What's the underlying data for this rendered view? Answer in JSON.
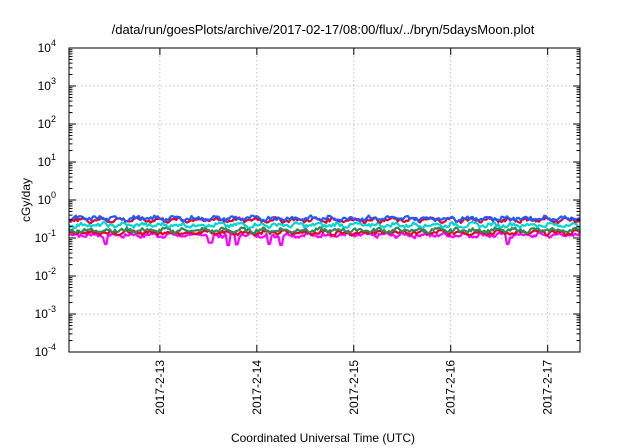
{
  "chart_data": {
    "type": "line",
    "title": "/data/run/goesPlots/archive/2017-02-17/08:00/flux/../bryn/5daysMoon.plot",
    "xlabel": "Coordinated Universal Time (UTC)",
    "ylabel": "cGy/day",
    "yscale": "log",
    "ylim": [
      0.0001,
      10000
    ],
    "xlim": [
      "2017-02-12T01:30",
      "2017-02-17T08:00"
    ],
    "x_ticks": [
      "2017-2-13",
      "2017-2-14",
      "2017-2-15",
      "2017-2-16",
      "2017-2-17"
    ],
    "y_ticks": [
      {
        "base": "10",
        "exp": "-4",
        "value": 0.0001
      },
      {
        "base": "10",
        "exp": "-3",
        "value": 0.001
      },
      {
        "base": "10",
        "exp": "-2",
        "value": 0.01
      },
      {
        "base": "10",
        "exp": "-1",
        "value": 0.1
      },
      {
        "base": "10",
        "exp": "0",
        "value": 1
      },
      {
        "base": "10",
        "exp": "1",
        "value": 10
      },
      {
        "base": "10",
        "exp": "2",
        "value": 100
      },
      {
        "base": "10",
        "exp": "3",
        "value": 1000
      },
      {
        "base": "10",
        "exp": "4",
        "value": 10000
      }
    ],
    "grid": true,
    "legend": "none",
    "series": [
      {
        "color": "#ff00ff",
        "level": 0.12,
        "dips": [
          {
            "x": "2017-02-12T10:30",
            "y": 0.07
          },
          {
            "x": "2017-02-13T12:30",
            "y": 0.075
          },
          {
            "x": "2017-02-13T17:00",
            "y": 0.065
          },
          {
            "x": "2017-02-13T19:00",
            "y": 0.068
          },
          {
            "x": "2017-02-14T03:00",
            "y": 0.07
          },
          {
            "x": "2017-02-14T06:00",
            "y": 0.066
          },
          {
            "x": "2017-02-16T14:00",
            "y": 0.07
          }
        ]
      },
      {
        "color": "#e8002a",
        "level": 0.14
      },
      {
        "color": "#2e8b57",
        "level": 0.16
      },
      {
        "color": "#00d5d5",
        "level": 0.22
      },
      {
        "color": "#e8002a",
        "level": 0.3
      },
      {
        "color": "#1e5aff",
        "level": 0.33
      }
    ]
  }
}
